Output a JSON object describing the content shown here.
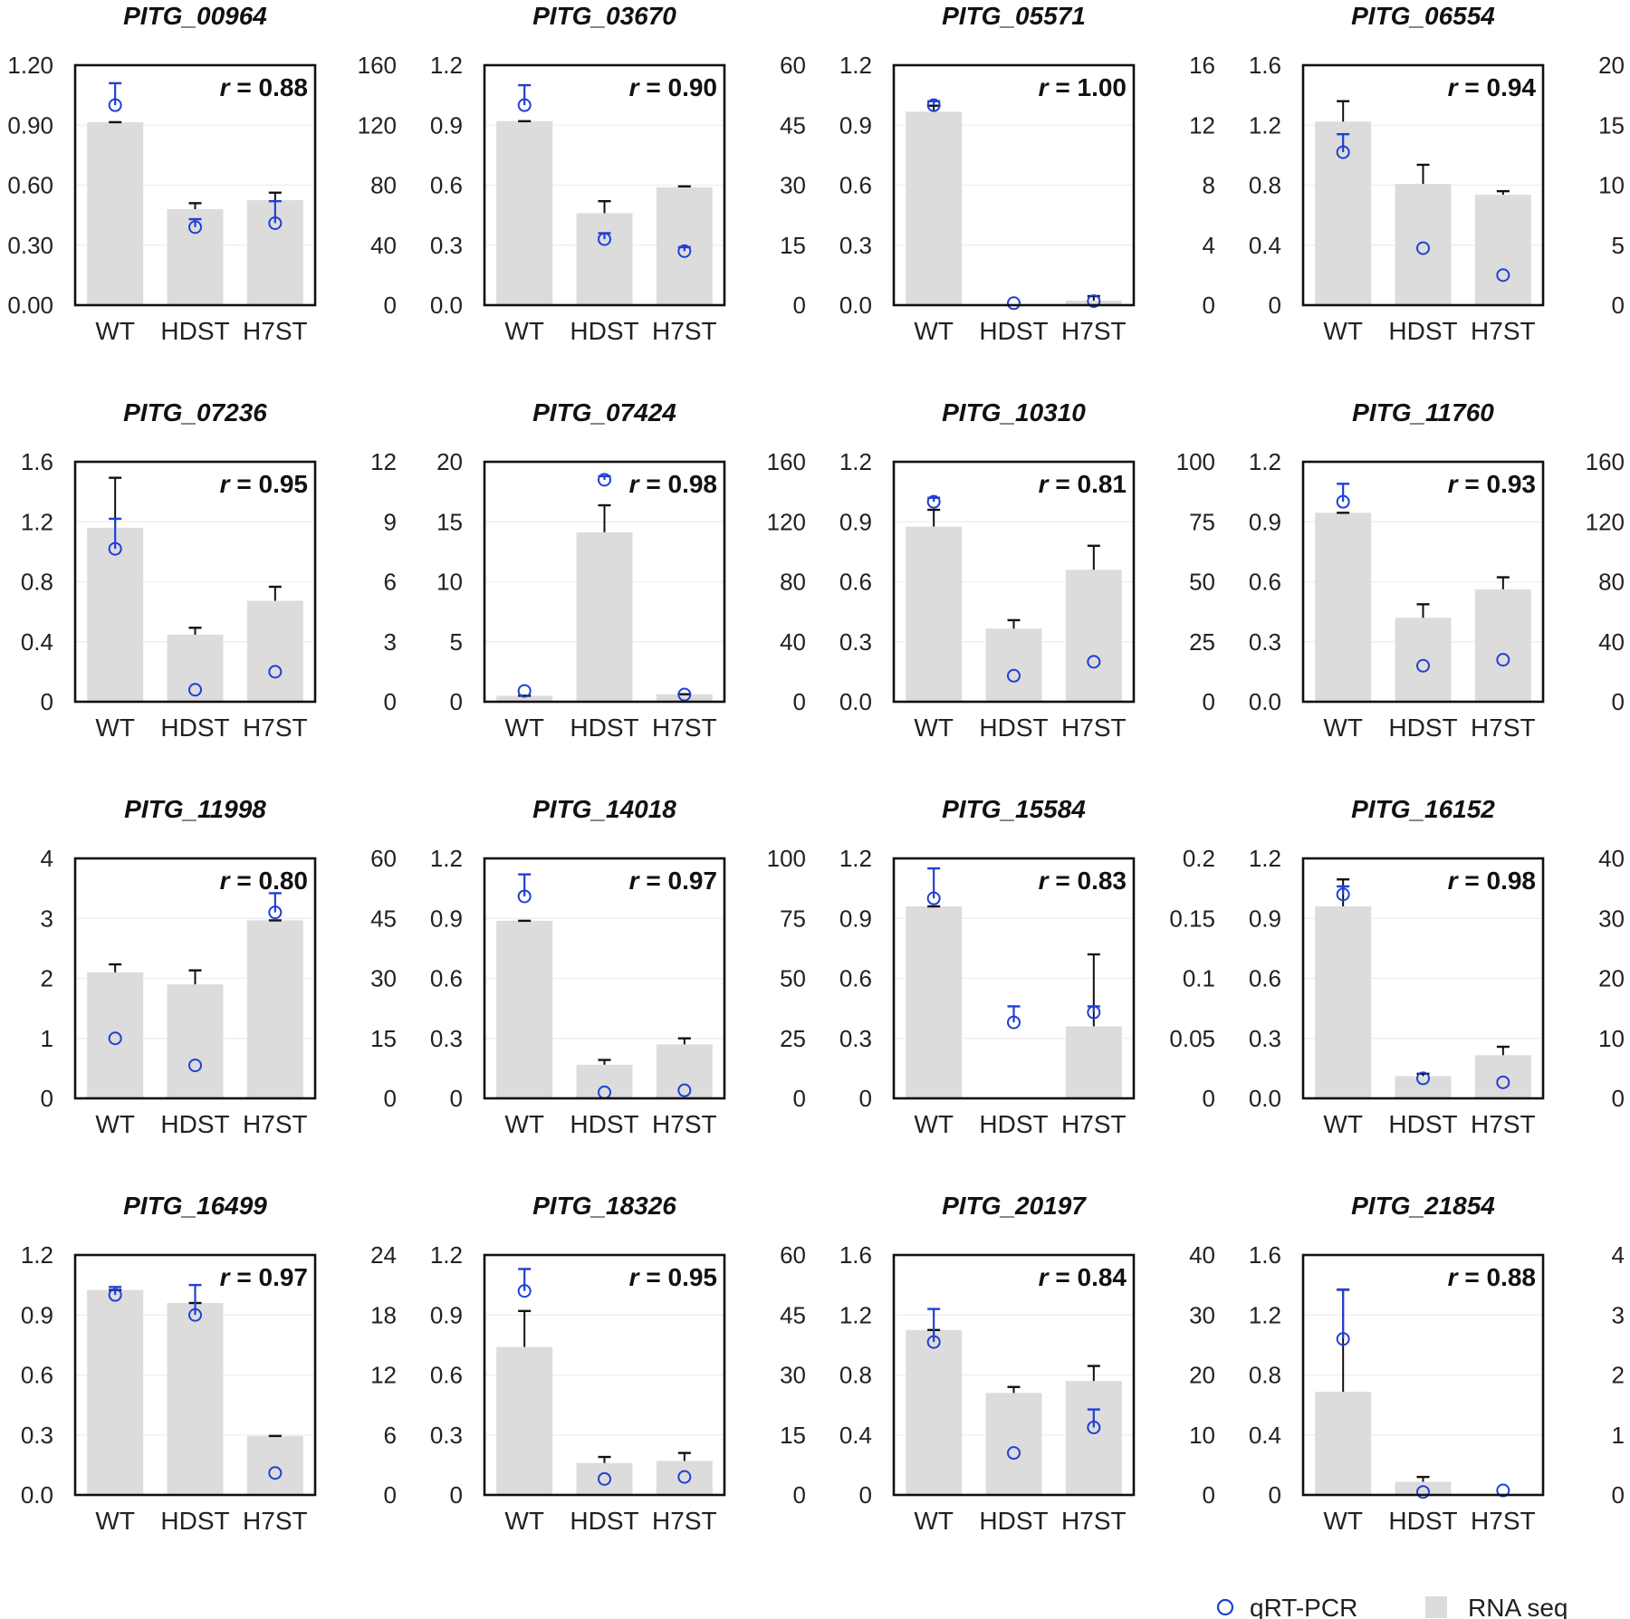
{
  "chart_data": {
    "type": "bar",
    "layout": "grid 4x4 small multiples, bars = RNA seq (right axis), circles = qRT-PCR (left axis)",
    "categories": [
      "WT",
      "HDST",
      "H7ST"
    ],
    "legend": [
      {
        "name": "qRT-PCR",
        "marker": "open circle",
        "color": "#1f3fd6"
      },
      {
        "name": "RNA seq",
        "marker": "grey bar",
        "color": "#dcdcdc"
      }
    ],
    "colors": {
      "bar": "#dcdcdc",
      "circle": "#1f3fd6",
      "bar_error": "#111111",
      "axis": "#111111",
      "grid": "#ededed"
    },
    "r_prefix": "r",
    "panels": [
      {
        "title": "PITG_00964",
        "r": "0.88",
        "left_ticks": [
          "0.00",
          "0.30",
          "0.60",
          "0.90",
          "1.20"
        ],
        "left_range": [
          0,
          1.2
        ],
        "right_ticks": [
          "0",
          "40",
          "80",
          "120",
          "160"
        ],
        "right_range": [
          0,
          160
        ],
        "rna": [
          122,
          64,
          70
        ],
        "rna_err": [
          0,
          4,
          5
        ],
        "qpcr": [
          1.0,
          0.39,
          0.41
        ],
        "qpcr_err": [
          0.11,
          0.04,
          0.11
        ]
      },
      {
        "title": "PITG_03670",
        "r": "0.90",
        "left_ticks": [
          "0.0",
          "0.3",
          "0.6",
          "0.9",
          "1.2"
        ],
        "left_range": [
          0,
          1.2
        ],
        "right_ticks": [
          "0",
          "15",
          "30",
          "45",
          "60"
        ],
        "right_range": [
          0,
          60
        ],
        "rna": [
          46,
          23,
          29.5
        ],
        "rna_err": [
          0,
          3,
          0.2
        ],
        "qpcr": [
          1.0,
          0.33,
          0.27
        ],
        "qpcr_err": [
          0.1,
          0.03,
          0.02
        ]
      },
      {
        "title": "PITG_05571",
        "r": "1.00",
        "left_ticks": [
          "0.0",
          "0.3",
          "0.6",
          "0.9",
          "1.2"
        ],
        "left_range": [
          0,
          1.2
        ],
        "right_ticks": [
          "0",
          "4",
          "8",
          "12",
          "16"
        ],
        "right_range": [
          0,
          16
        ],
        "rna": [
          12.9,
          0,
          0.3
        ],
        "rna_err": [
          0.4,
          0,
          0.3
        ],
        "qpcr": [
          1.0,
          0.01,
          0.02
        ],
        "qpcr_err": [
          0.02,
          0,
          0
        ]
      },
      {
        "title": "PITG_06554",
        "r": "0.94",
        "left_ticks": [
          "0",
          "0.4",
          "0.8",
          "1.2",
          "1.6"
        ],
        "left_range": [
          0,
          1.6
        ],
        "right_ticks": [
          "0",
          "5",
          "10",
          "15",
          "20"
        ],
        "right_range": [
          0,
          20
        ],
        "rna": [
          15.3,
          10.1,
          9.2
        ],
        "rna_err": [
          1.7,
          1.6,
          0.3
        ],
        "qpcr": [
          1.02,
          0.38,
          0.2
        ],
        "qpcr_err": [
          0.12,
          0,
          0
        ]
      },
      {
        "title": "PITG_07236",
        "r": "0.95",
        "left_ticks": [
          "0",
          "0.4",
          "0.8",
          "1.2",
          "1.6"
        ],
        "left_range": [
          0,
          1.6
        ],
        "right_ticks": [
          "0",
          "3",
          "6",
          "9",
          "12"
        ],
        "right_range": [
          0,
          12
        ],
        "rna": [
          8.7,
          3.35,
          5.05
        ],
        "rna_err": [
          2.5,
          0.35,
          0.7
        ],
        "qpcr": [
          1.02,
          0.08,
          0.2
        ],
        "qpcr_err": [
          0.2,
          0,
          0
        ]
      },
      {
        "title": "PITG_07424",
        "r": "0.98",
        "left_ticks": [
          "0",
          "5",
          "10",
          "15",
          "20"
        ],
        "left_range": [
          0,
          20
        ],
        "right_ticks": [
          "0",
          "40",
          "80",
          "120",
          "160"
        ],
        "right_range": [
          0,
          160
        ],
        "rna": [
          4,
          113,
          5
        ],
        "rna_err": [
          0,
          18,
          0
        ],
        "qpcr": [
          0.9,
          18.5,
          0.6
        ],
        "qpcr_err": [
          0,
          0.3,
          0
        ]
      },
      {
        "title": "PITG_10310",
        "r": "0.81",
        "left_ticks": [
          "0.0",
          "0.3",
          "0.6",
          "0.9",
          "1.2"
        ],
        "left_range": [
          0,
          1.2
        ],
        "right_ticks": [
          "0",
          "25",
          "50",
          "75",
          "100"
        ],
        "right_range": [
          0,
          100
        ],
        "rna": [
          73,
          30.5,
          55
        ],
        "rna_err": [
          7,
          3.5,
          10
        ],
        "qpcr": [
          1.0,
          0.13,
          0.2
        ],
        "qpcr_err": [
          0.02,
          0,
          0
        ]
      },
      {
        "title": "PITG_11760",
        "r": "0.93",
        "left_ticks": [
          "0.0",
          "0.3",
          "0.6",
          "0.9",
          "1.2"
        ],
        "left_range": [
          0,
          1.2
        ],
        "right_ticks": [
          "0",
          "40",
          "80",
          "120",
          "160"
        ],
        "right_range": [
          0,
          160
        ],
        "rna": [
          126,
          56,
          75
        ],
        "rna_err": [
          0,
          9,
          8
        ],
        "qpcr": [
          1.0,
          0.18,
          0.21
        ],
        "qpcr_err": [
          0.09,
          0,
          0
        ]
      },
      {
        "title": "PITG_11998",
        "r": "0.80",
        "left_ticks": [
          "0",
          "1",
          "2",
          "3",
          "4"
        ],
        "left_range": [
          0,
          4
        ],
        "right_ticks": [
          "0",
          "15",
          "30",
          "45",
          "60"
        ],
        "right_range": [
          0,
          60
        ],
        "rna": [
          31.5,
          28.5,
          44.5
        ],
        "rna_err": [
          2,
          3.5,
          0
        ],
        "qpcr": [
          1.0,
          0.55,
          3.1
        ],
        "qpcr_err": [
          0,
          0,
          0.32
        ]
      },
      {
        "title": "PITG_14018",
        "r": "0.97",
        "left_ticks": [
          "0",
          "0.3",
          "0.6",
          "0.9",
          "1.2"
        ],
        "left_range": [
          0,
          1.2
        ],
        "right_ticks": [
          "0",
          "25",
          "50",
          "75",
          "100"
        ],
        "right_range": [
          0,
          100
        ],
        "rna": [
          74,
          14,
          22.5
        ],
        "rna_err": [
          0,
          2,
          2.5
        ],
        "qpcr": [
          1.01,
          0.03,
          0.04
        ],
        "qpcr_err": [
          0.11,
          0,
          0
        ]
      },
      {
        "title": "PITG_15584",
        "r": "0.83",
        "left_ticks": [
          "0",
          "0.3",
          "0.6",
          "0.9",
          "1.2"
        ],
        "left_range": [
          0,
          1.2
        ],
        "right_ticks": [
          "0",
          "0.05",
          "0.1",
          "0.15",
          "0.2"
        ],
        "right_range": [
          0,
          0.2
        ],
        "rna": [
          0.16,
          0,
          0.06
        ],
        "rna_err": [
          0,
          0,
          0.06
        ],
        "qpcr": [
          1.0,
          0.38,
          0.43
        ],
        "qpcr_err": [
          0.15,
          0.08,
          0.03
        ]
      },
      {
        "title": "PITG_16152",
        "r": "0.98",
        "left_ticks": [
          "0.0",
          "0.3",
          "0.6",
          "0.9",
          "1.2"
        ],
        "left_range": [
          0,
          1.2
        ],
        "right_ticks": [
          "0",
          "10",
          "20",
          "30",
          "40"
        ],
        "right_range": [
          0,
          40
        ],
        "rna": [
          32,
          3.7,
          7.2
        ],
        "rna_err": [
          4.5,
          0.4,
          1.4
        ],
        "qpcr": [
          1.02,
          0.1,
          0.08
        ],
        "qpcr_err": [
          0.04,
          0,
          0
        ]
      },
      {
        "title": "PITG_16499",
        "r": "0.97",
        "left_ticks": [
          "0.0",
          "0.3",
          "0.6",
          "0.9",
          "1.2"
        ],
        "left_range": [
          0,
          1.2
        ],
        "right_ticks": [
          "0",
          "6",
          "12",
          "18",
          "24"
        ],
        "right_range": [
          0,
          24
        ],
        "rna": [
          20.5,
          19.2,
          5.9
        ],
        "rna_err": [
          0,
          0,
          0
        ],
        "qpcr": [
          1.0,
          0.9,
          0.11
        ],
        "qpcr_err": [
          0.04,
          0.15,
          0
        ]
      },
      {
        "title": "PITG_18326",
        "r": "0.95",
        "left_ticks": [
          "0",
          "0.3",
          "0.6",
          "0.9",
          "1.2"
        ],
        "left_range": [
          0,
          1.2
        ],
        "right_ticks": [
          "0",
          "15",
          "30",
          "45",
          "60"
        ],
        "right_range": [
          0,
          60
        ],
        "rna": [
          37,
          8,
          8.5
        ],
        "rna_err": [
          9,
          1.5,
          2
        ],
        "qpcr": [
          1.02,
          0.08,
          0.09
        ],
        "qpcr_err": [
          0.11,
          0,
          0
        ]
      },
      {
        "title": "PITG_20197",
        "r": "0.84",
        "left_ticks": [
          "0",
          "0.4",
          "0.8",
          "1.2",
          "1.6"
        ],
        "left_range": [
          0,
          1.6
        ],
        "right_ticks": [
          "0",
          "10",
          "20",
          "30",
          "40"
        ],
        "right_range": [
          0,
          40
        ],
        "rna": [
          27.5,
          17,
          19
        ],
        "rna_err": [
          0,
          1,
          2.5
        ],
        "qpcr": [
          1.02,
          0.28,
          0.45
        ],
        "qpcr_err": [
          0.22,
          0,
          0.12
        ]
      },
      {
        "title": "PITG_21854",
        "r": "0.88",
        "left_ticks": [
          "0",
          "0.4",
          "0.8",
          "1.2",
          "1.6"
        ],
        "left_range": [
          0,
          1.6
        ],
        "right_ticks": [
          "0",
          "1",
          "2",
          "3",
          "4"
        ],
        "right_range": [
          0,
          4
        ],
        "rna": [
          1.72,
          0.22,
          0
        ],
        "rna_err": [
          1.7,
          0.08,
          0
        ],
        "qpcr": [
          1.04,
          0.02,
          0.03
        ],
        "qpcr_err": [
          0.33,
          0,
          0
        ]
      }
    ]
  }
}
